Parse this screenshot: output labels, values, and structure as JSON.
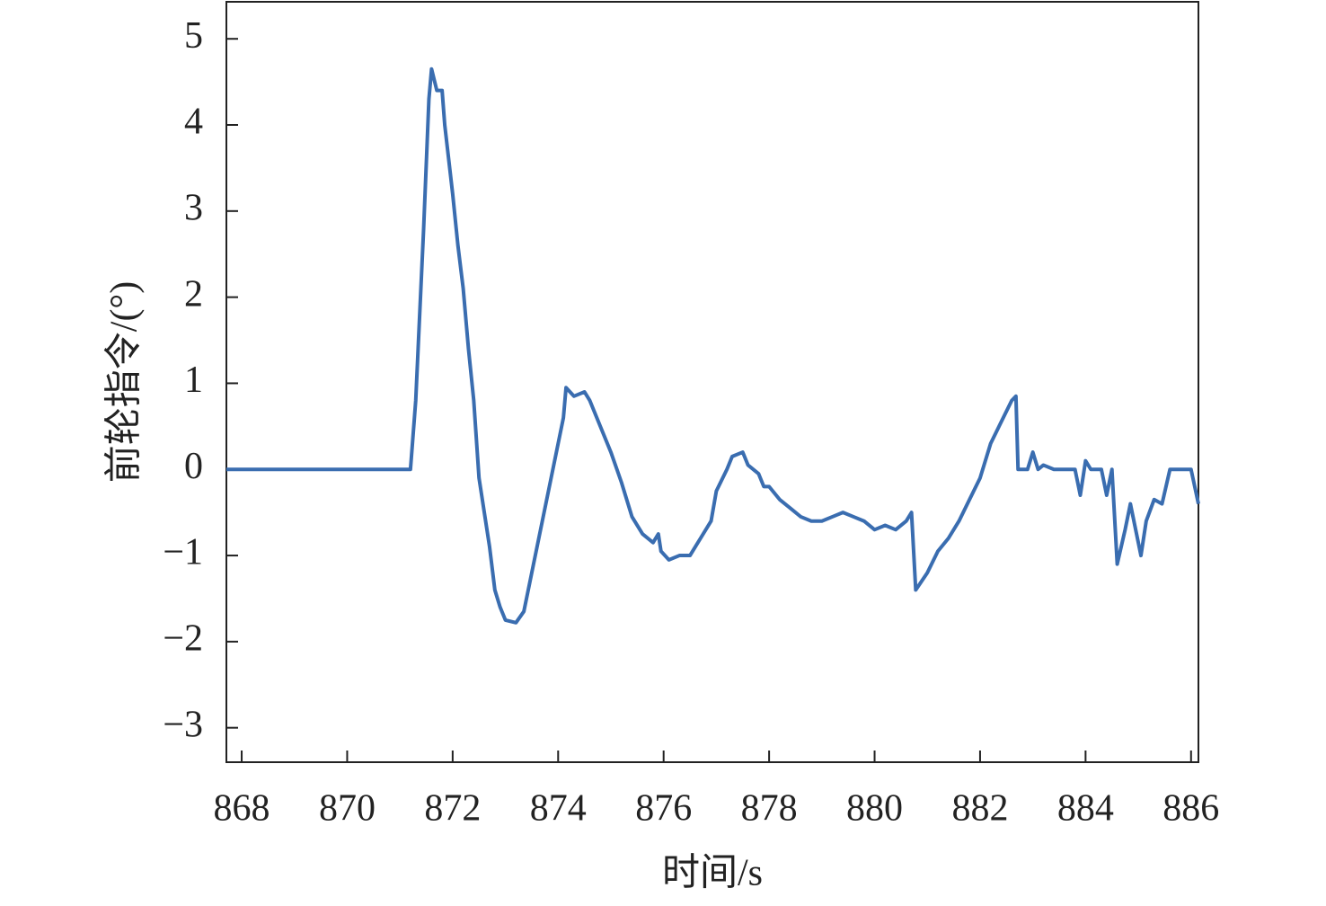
{
  "chart_data": {
    "type": "line",
    "x_label": "时间/s",
    "y_label": "前轮指令/(°)",
    "xlim": [
      867.71,
      886.14
    ],
    "ylim": [
      -3.4,
      5.43
    ],
    "xticks": [
      868,
      870,
      872,
      874,
      876,
      878,
      880,
      882,
      884,
      886
    ],
    "yticks": [
      {
        "value": -3,
        "label": "−3"
      },
      {
        "value": -2,
        "label": "−2"
      },
      {
        "value": -1,
        "label": "−1"
      },
      0,
      1,
      2,
      3,
      4,
      5
    ],
    "series": [
      {
        "color": "#3a6db0",
        "x": [
          867.71,
          871.2,
          871.3,
          871.45,
          871.55,
          871.6,
          871.7,
          871.8,
          871.85,
          872.0,
          872.1,
          872.2,
          872.3,
          872.4,
          872.5,
          872.6,
          872.7,
          872.8,
          872.9,
          873.0,
          873.2,
          873.35,
          873.5,
          873.7,
          873.9,
          874.0,
          874.1,
          874.15,
          874.3,
          874.5,
          874.6,
          874.8,
          875.0,
          875.2,
          875.4,
          875.6,
          875.8,
          875.9,
          875.95,
          876.1,
          876.3,
          876.5,
          876.6,
          876.7,
          876.9,
          877.0,
          877.2,
          877.3,
          877.5,
          877.6,
          877.8,
          877.9,
          878.0,
          878.2,
          878.4,
          878.6,
          878.8,
          879.0,
          879.2,
          879.4,
          879.6,
          879.8,
          880.0,
          880.2,
          880.4,
          880.6,
          880.7,
          880.78,
          881.0,
          881.2,
          881.4,
          881.6,
          881.8,
          882.0,
          882.2,
          882.4,
          882.6,
          882.68,
          882.72,
          882.9,
          883.0,
          883.1,
          883.2,
          883.4,
          883.8,
          883.9,
          884.0,
          884.1,
          884.3,
          884.4,
          884.5,
          884.6,
          884.75,
          884.85,
          884.95,
          885.05,
          885.15,
          885.3,
          885.45,
          885.6,
          886.0,
          886.14
        ],
        "values": [
          0,
          0,
          0.8,
          2.8,
          4.3,
          4.65,
          4.4,
          4.4,
          4.0,
          3.2,
          2.6,
          2.1,
          1.4,
          0.8,
          -0.1,
          -0.5,
          -0.9,
          -1.4,
          -1.6,
          -1.75,
          -1.78,
          -1.65,
          -1.2,
          -0.6,
          0.0,
          0.3,
          0.6,
          0.95,
          0.85,
          0.9,
          0.8,
          0.5,
          0.2,
          -0.15,
          -0.55,
          -0.75,
          -0.85,
          -0.75,
          -0.95,
          -1.05,
          -1.0,
          -1.0,
          -0.9,
          -0.8,
          -0.6,
          -0.25,
          0.0,
          0.15,
          0.2,
          0.05,
          -0.05,
          -0.2,
          -0.2,
          -0.35,
          -0.45,
          -0.55,
          -0.6,
          -0.6,
          -0.55,
          -0.5,
          -0.55,
          -0.6,
          -0.7,
          -0.65,
          -0.7,
          -0.6,
          -0.5,
          -1.4,
          -1.2,
          -0.95,
          -0.8,
          -0.6,
          -0.35,
          -0.1,
          0.3,
          0.55,
          0.8,
          0.85,
          0.0,
          0.0,
          0.2,
          0.0,
          0.05,
          0.0,
          0.0,
          -0.3,
          0.1,
          0.0,
          0.0,
          -0.3,
          0.0,
          -1.1,
          -0.7,
          -0.4,
          -0.7,
          -1.0,
          -0.6,
          -0.35,
          -0.4,
          0.0,
          0.0,
          -0.4
        ]
      }
    ]
  }
}
